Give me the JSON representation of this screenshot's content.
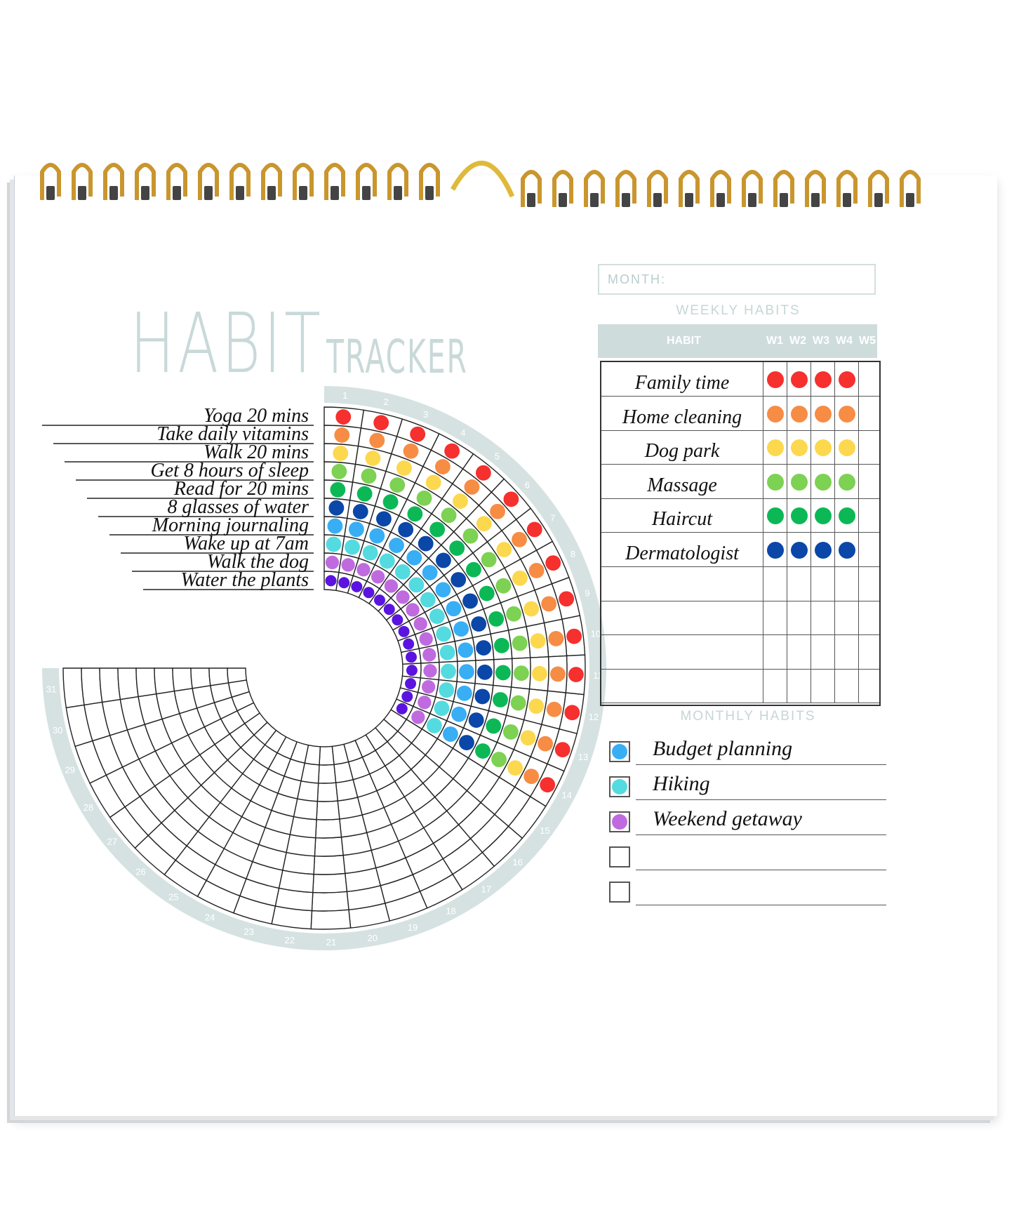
{
  "title": {
    "big": "HABIT",
    "small": "TRACKER"
  },
  "colors": {
    "accent": "#cfdcdc",
    "ink": "#222222",
    "ring": "#d6e2e2",
    "spiral": "#c9962e"
  },
  "daily": {
    "days_done": 14,
    "day_labels": [
      "1",
      "2",
      "3",
      "4",
      "5",
      "6",
      "7",
      "8",
      "9",
      "10",
      "11",
      "12",
      "13",
      "14",
      "15",
      "16",
      "17",
      "18",
      "19",
      "20",
      "21",
      "22",
      "23",
      "24",
      "25",
      "26",
      "27",
      "28",
      "29",
      "30",
      "31"
    ],
    "habits": [
      {
        "label": "Yoga 20 mins",
        "color": "#f5302e"
      },
      {
        "label": "Take daily vitamins",
        "color": "#f78c45"
      },
      {
        "label": "Walk 20 mins",
        "color": "#fcd84f"
      },
      {
        "label": "Get 8 hours of sleep",
        "color": "#7dd153"
      },
      {
        "label": "Read for 20 mins",
        "color": "#0cb856"
      },
      {
        "label": "8 glasses of water",
        "color": "#0a47a8"
      },
      {
        "label": "Morning journaling",
        "color": "#38aef5"
      },
      {
        "label": "Wake up at 7am",
        "color": "#54dbe0"
      },
      {
        "label": "Walk the dog",
        "color": "#c06ae0"
      },
      {
        "label": "Water the plants",
        "color": "#5b14e0"
      }
    ]
  },
  "month": {
    "label": "MONTH:"
  },
  "weekly": {
    "title": "WEEKLY HABITS",
    "header": {
      "habit": "HABIT",
      "weeks": [
        "W1",
        "W2",
        "W3",
        "W4",
        "W5"
      ]
    },
    "rows": [
      {
        "label": "Family time",
        "color": "#f5302e",
        "weeks_done": 4
      },
      {
        "label": "Home cleaning",
        "color": "#f78c45",
        "weeks_done": 4
      },
      {
        "label": "Dog park",
        "color": "#fcd84f",
        "weeks_done": 4
      },
      {
        "label": "Massage",
        "color": "#7dd153",
        "weeks_done": 4
      },
      {
        "label": "Haircut",
        "color": "#0cb856",
        "weeks_done": 4
      },
      {
        "label": "Dermatologist",
        "color": "#0a47a8",
        "weeks_done": 4
      },
      {
        "label": "",
        "color": "",
        "weeks_done": 0
      },
      {
        "label": "",
        "color": "",
        "weeks_done": 0
      },
      {
        "label": "",
        "color": "",
        "weeks_done": 0
      },
      {
        "label": "",
        "color": "",
        "weeks_done": 0
      }
    ]
  },
  "monthly": {
    "title": "MONTHLY HABITS",
    "items": [
      {
        "label": "Budget planning",
        "color": "#38aef5",
        "done": true
      },
      {
        "label": "Hiking",
        "color": "#54dbe0",
        "done": true
      },
      {
        "label": "Weekend getaway",
        "color": "#c06ae0",
        "done": true
      },
      {
        "label": "",
        "color": "",
        "done": false
      },
      {
        "label": "",
        "color": "",
        "done": false
      }
    ]
  }
}
